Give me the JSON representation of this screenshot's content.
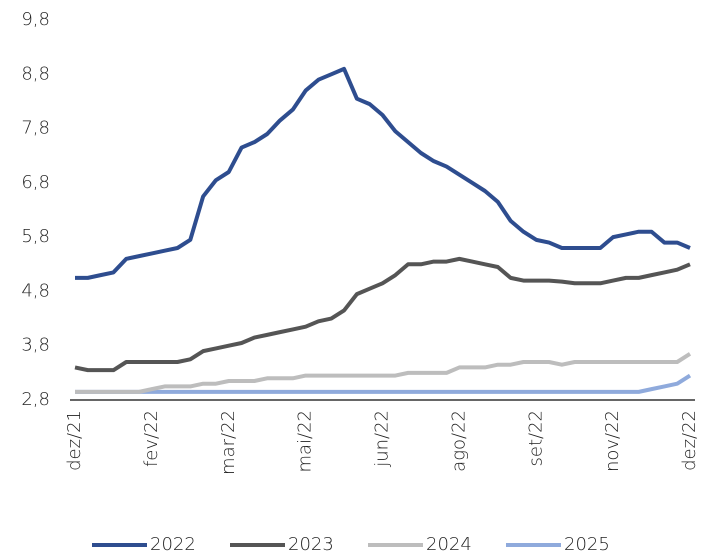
{
  "chart_data": {
    "type": "line",
    "categories": [
      "dez/21",
      null,
      null,
      null,
      null,
      null,
      "fev/22",
      null,
      null,
      null,
      null,
      null,
      "mar/22",
      null,
      null,
      null,
      null,
      null,
      "mai/22",
      null,
      null,
      null,
      null,
      null,
      "jun/22",
      null,
      null,
      null,
      null,
      null,
      "ago/22",
      null,
      null,
      null,
      null,
      null,
      "set/22",
      null,
      null,
      null,
      null,
      null,
      "nov/22",
      null,
      null,
      null,
      null,
      null,
      "dez/22"
    ],
    "series": [
      {
        "name": "2022",
        "color": "#2e4d8f",
        "values": [
          5.05,
          5.05,
          5.1,
          5.15,
          5.4,
          5.45,
          5.5,
          5.55,
          5.6,
          5.75,
          6.55,
          6.85,
          7.0,
          7.45,
          7.55,
          7.7,
          7.95,
          8.15,
          8.5,
          8.7,
          8.8,
          8.9,
          8.35,
          8.25,
          8.05,
          7.75,
          7.55,
          7.35,
          7.2,
          7.1,
          6.95,
          6.8,
          6.65,
          6.45,
          6.1,
          5.9,
          5.75,
          5.7,
          5.6,
          5.6,
          5.6,
          5.6,
          5.8,
          5.85,
          5.9,
          5.9,
          5.7,
          5.7,
          5.6
        ]
      },
      {
        "name": "2023",
        "color": "#555555",
        "values": [
          3.4,
          3.35,
          3.35,
          3.35,
          3.5,
          3.5,
          3.5,
          3.5,
          3.5,
          3.55,
          3.7,
          3.75,
          3.8,
          3.85,
          3.95,
          4.0,
          4.05,
          4.1,
          4.15,
          4.25,
          4.3,
          4.45,
          4.75,
          4.85,
          4.95,
          5.1,
          5.3,
          5.3,
          5.35,
          5.35,
          5.4,
          5.35,
          5.3,
          5.25,
          5.05,
          5.0,
          5.0,
          5.0,
          4.98,
          4.95,
          4.95,
          4.95,
          5.0,
          5.05,
          5.05,
          5.1,
          5.15,
          5.2,
          5.3
        ]
      },
      {
        "name": "2024",
        "color": "#bdbdbd",
        "values": [
          2.95,
          2.95,
          2.95,
          2.95,
          2.95,
          2.95,
          3.0,
          3.05,
          3.05,
          3.05,
          3.1,
          3.1,
          3.15,
          3.15,
          3.15,
          3.2,
          3.2,
          3.2,
          3.25,
          3.25,
          3.25,
          3.25,
          3.25,
          3.25,
          3.25,
          3.25,
          3.3,
          3.3,
          3.3,
          3.3,
          3.4,
          3.4,
          3.4,
          3.45,
          3.45,
          3.5,
          3.5,
          3.5,
          3.45,
          3.5,
          3.5,
          3.5,
          3.5,
          3.5,
          3.5,
          3.5,
          3.5,
          3.5,
          3.65
        ]
      },
      {
        "name": "2025",
        "color": "#8faadc",
        "values": [
          2.95,
          2.95,
          2.95,
          2.95,
          2.95,
          2.95,
          2.95,
          2.95,
          2.95,
          2.95,
          2.95,
          2.95,
          2.95,
          2.95,
          2.95,
          2.95,
          2.95,
          2.95,
          2.95,
          2.95,
          2.95,
          2.95,
          2.95,
          2.95,
          2.95,
          2.95,
          2.95,
          2.95,
          2.95,
          2.95,
          2.95,
          2.95,
          2.95,
          2.95,
          2.95,
          2.95,
          2.95,
          2.95,
          2.95,
          2.95,
          2.95,
          2.95,
          2.95,
          2.95,
          2.95,
          3.0,
          3.05,
          3.1,
          3.25
        ]
      }
    ],
    "ylim": [
      2.8,
      9.8
    ],
    "yticks": [
      {
        "value": 2.8,
        "label": "2,8"
      },
      {
        "value": 3.8,
        "label": "3,8"
      },
      {
        "value": 4.8,
        "label": "4,8"
      },
      {
        "value": 5.8,
        "label": "5,8"
      },
      {
        "value": 6.8,
        "label": "6,8"
      },
      {
        "value": 7.8,
        "label": "7,8"
      },
      {
        "value": 8.8,
        "label": "8,8"
      },
      {
        "value": 9.8,
        "label": "9,8"
      }
    ],
    "grid": false,
    "legend": "bottom"
  }
}
